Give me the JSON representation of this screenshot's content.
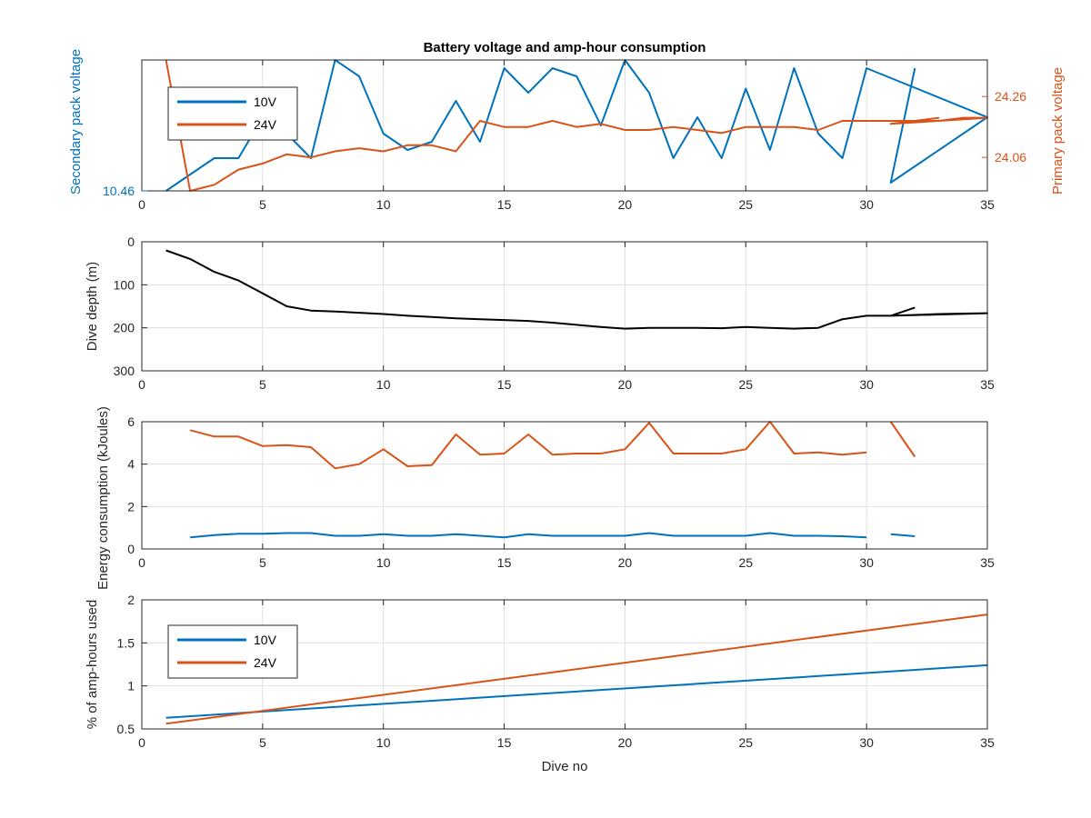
{
  "figure": {
    "title": "Battery voltage and amp-hour consumption",
    "colors": {
      "blue": "#0072BD",
      "orange": "#D95319",
      "black": "#000000",
      "axis": "#262626",
      "grid": "#DFDFDF"
    }
  },
  "chart_data": [
    {
      "type": "line",
      "title": "Battery voltage and amp-hour consumption",
      "xlabel": "",
      "ylabel_left": "Secondary pack voltage",
      "ylabel_right": "Primary pack voltage",
      "xlim": [
        0,
        35
      ],
      "xticks": [
        0,
        5,
        10,
        15,
        20,
        25,
        30,
        35
      ],
      "ylim_left": [
        10.46,
        10.62
      ],
      "yticks_left": [
        {
          "value": 10.46,
          "label": "10.46"
        }
      ],
      "ylim_right": [
        23.95,
        24.38
      ],
      "yticks_right": [
        {
          "value": 24.06,
          "label": "24.06"
        },
        {
          "value": 24.26,
          "label": "24.26"
        }
      ],
      "grid": true,
      "legend": {
        "position": "top-left",
        "entries": [
          "10V",
          "24V"
        ]
      },
      "series": [
        {
          "name": "10V",
          "color": "#0072BD",
          "axis": "left",
          "x": [
            1,
            2,
            3,
            4,
            5,
            6,
            7,
            8,
            9,
            10,
            11,
            12,
            13,
            14,
            15,
            16,
            17,
            18,
            19,
            20,
            21,
            22,
            23,
            24,
            25,
            26,
            27,
            28,
            29,
            30,
            35,
            31,
            32
          ],
          "y": [
            10.46,
            10.48,
            10.5,
            10.5,
            10.55,
            10.53,
            10.5,
            10.62,
            10.6,
            10.53,
            10.51,
            10.52,
            10.57,
            10.52,
            10.61,
            10.58,
            10.61,
            10.6,
            10.54,
            10.62,
            10.58,
            10.5,
            10.55,
            10.5,
            10.585,
            10.51,
            10.61,
            10.53,
            10.5,
            10.61,
            10.55,
            10.47,
            10.61
          ]
        },
        {
          "name": "24V",
          "color": "#D95319",
          "axis": "right",
          "x": [
            1,
            2,
            3,
            4,
            5,
            6,
            7,
            8,
            9,
            10,
            11,
            12,
            13,
            14,
            15,
            16,
            17,
            18,
            19,
            20,
            21,
            22,
            23,
            24,
            25,
            26,
            27,
            28,
            29,
            30,
            31,
            32,
            33,
            34,
            35,
            31,
            32,
            33
          ],
          "y": [
            24.38,
            23.95,
            23.97,
            24.02,
            24.04,
            24.07,
            24.06,
            24.08,
            24.09,
            24.08,
            24.1,
            24.1,
            24.08,
            24.18,
            24.16,
            24.16,
            24.18,
            24.16,
            24.17,
            24.15,
            24.15,
            24.16,
            24.15,
            24.14,
            24.16,
            24.16,
            24.16,
            24.15,
            24.18,
            24.18,
            24.18,
            24.18,
            24.18,
            24.19,
            24.19,
            24.17,
            24.18,
            24.19
          ]
        }
      ]
    },
    {
      "type": "line",
      "title": "",
      "xlabel": "",
      "ylabel": "Dive depth (m)",
      "xlim": [
        0,
        35
      ],
      "xticks": [
        0,
        5,
        10,
        15,
        20,
        25,
        30,
        35
      ],
      "ylim": [
        0,
        300
      ],
      "y_reversed": true,
      "yticks": [
        0,
        100,
        200,
        300
      ],
      "grid": true,
      "series": [
        {
          "name": "",
          "color": "#000000",
          "x": [
            1,
            2,
            3,
            4,
            5,
            6,
            7,
            8,
            9,
            10,
            11,
            12,
            13,
            14,
            15,
            16,
            17,
            18,
            19,
            20,
            21,
            22,
            23,
            24,
            25,
            26,
            27,
            28,
            29,
            30,
            31,
            32,
            33,
            34,
            35,
            31,
            32
          ],
          "y": [
            20,
            40,
            70,
            90,
            120,
            150,
            160,
            162,
            165,
            168,
            172,
            175,
            178,
            180,
            182,
            184,
            188,
            193,
            198,
            202,
            200,
            200,
            200,
            201,
            198,
            200,
            202,
            200,
            180,
            172,
            172,
            170,
            168,
            167,
            166,
            172,
            153
          ]
        }
      ]
    },
    {
      "type": "line",
      "title": "",
      "xlabel": "",
      "ylabel": "Energy consumption (kJoules)",
      "xlim": [
        0,
        35
      ],
      "xticks": [
        0,
        5,
        10,
        15,
        20,
        25,
        30,
        35
      ],
      "ylim": [
        0,
        6
      ],
      "yticks": [
        0,
        2,
        4,
        6
      ],
      "grid": true,
      "series": [
        {
          "name": "24V",
          "color": "#D95319",
          "segments": [
            {
              "x": [
                2,
                3,
                4,
                5,
                6,
                7,
                8,
                9,
                10,
                11,
                12,
                13,
                14,
                15,
                16,
                17,
                18,
                19,
                20,
                21,
                22,
                23,
                24,
                25,
                26,
                27,
                28,
                29,
                30
              ],
              "y": [
                5.6,
                5.3,
                5.3,
                4.85,
                4.9,
                4.8,
                3.8,
                4.0,
                4.7,
                3.9,
                3.95,
                5.4,
                4.45,
                4.5,
                5.4,
                4.45,
                4.5,
                4.5,
                4.7,
                5.95,
                4.5,
                4.5,
                4.5,
                4.7,
                6.0,
                4.5,
                4.55,
                4.45,
                4.55
              ]
            },
            {
              "x": [
                31,
                32
              ],
              "y": [
                6.0,
                4.35
              ]
            }
          ]
        },
        {
          "name": "10V",
          "color": "#0072BD",
          "segments": [
            {
              "x": [
                2,
                3,
                4,
                5,
                6,
                7,
                8,
                9,
                10,
                11,
                12,
                13,
                14,
                15,
                16,
                17,
                18,
                19,
                20,
                21,
                22,
                23,
                24,
                25,
                26,
                27,
                28,
                29,
                30
              ],
              "y": [
                0.55,
                0.65,
                0.72,
                0.72,
                0.75,
                0.75,
                0.62,
                0.62,
                0.7,
                0.62,
                0.62,
                0.7,
                0.62,
                0.55,
                0.7,
                0.62,
                0.62,
                0.62,
                0.62,
                0.75,
                0.62,
                0.62,
                0.62,
                0.62,
                0.75,
                0.62,
                0.62,
                0.6,
                0.55
              ]
            },
            {
              "x": [
                31,
                32
              ],
              "y": [
                0.7,
                0.6
              ]
            }
          ]
        }
      ]
    },
    {
      "type": "line",
      "title": "",
      "xlabel": "Dive no",
      "ylabel": "% of amp-hours used",
      "xlim": [
        0,
        35
      ],
      "xticks": [
        0,
        5,
        10,
        15,
        20,
        25,
        30,
        35
      ],
      "ylim": [
        0.5,
        2
      ],
      "yticks": [
        {
          "value": 0.5,
          "label": "0.5"
        },
        {
          "value": 1,
          "label": "1"
        },
        {
          "value": 1.5,
          "label": "1.5"
        },
        {
          "value": 2,
          "label": "2"
        }
      ],
      "grid": true,
      "legend": {
        "position": "bottom-left",
        "entries": [
          "10V",
          "24V"
        ]
      },
      "series": [
        {
          "name": "10V",
          "color": "#0072BD",
          "x": [
            1,
            35
          ],
          "y": [
            0.63,
            1.24
          ]
        },
        {
          "name": "24V",
          "color": "#D95319",
          "x": [
            1,
            35
          ],
          "y": [
            0.56,
            1.83
          ]
        }
      ]
    }
  ]
}
